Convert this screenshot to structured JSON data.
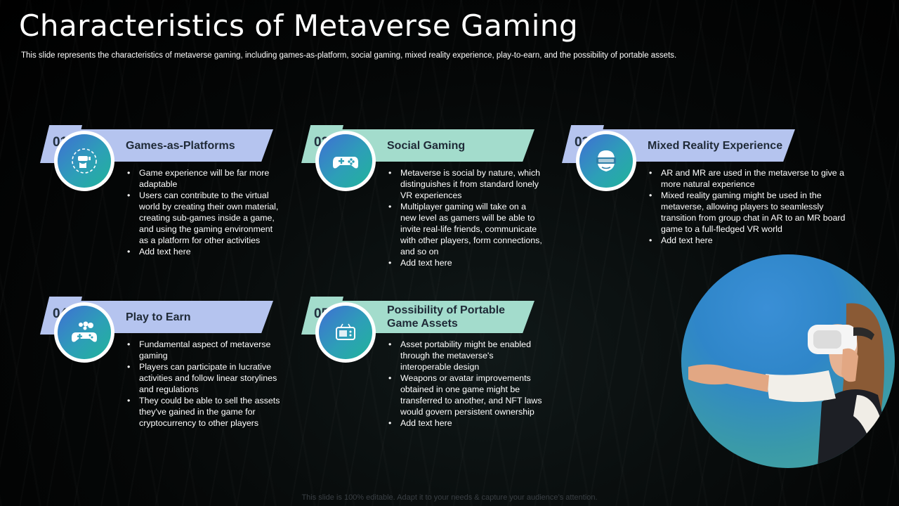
{
  "slide": {
    "title": "Characteristics of Metaverse Gaming",
    "subtitle": "This slide represents the characteristics of metaverse gaming, including games-as-platform, social gaming, mixed reality experience, play-to-earn, and the possibility of portable assets.",
    "footer": "This slide is 100% editable. Adapt it to your needs & capture your audience’s attention."
  },
  "cards": [
    {
      "number": "01",
      "title": "Games-as-Platforms",
      "icon": "vr-headset-person-icon",
      "accent": "#b5c4ef",
      "bullets": [
        "Game experience will be far more adaptable",
        "Users can contribute to the virtual world by creating their own material, creating sub-games inside a game, and using the gaming environment  as a platform for other activities",
        "Add text here"
      ]
    },
    {
      "number": "02",
      "title": "Social Gaming",
      "icon": "gamepad-icon",
      "accent": "#a3dccc",
      "bullets": [
        "Metaverse  is social by nature, which distinguishes it from standard lonely VR experiences",
        "Multiplayer gaming will take on a new level as gamers will be able to invite real-life friends, communicate with other players, form connections, and so on",
        "Add text here"
      ]
    },
    {
      "number": "03",
      "title": "Mixed Reality Experience",
      "icon": "vr-head-icon",
      "accent": "#b5c4ef",
      "bullets": [
        "AR and MR are used in the metaverse  to give  a more natural experience",
        "Mixed reality gaming might be used in the metaverse,  allowing players to seamlessly transition from group chat in AR to an MR board game to a full-fledged  VR world",
        "Add text here"
      ]
    },
    {
      "number": "04",
      "title": "Play to Earn",
      "icon": "gamepad-coins-icon",
      "accent": "#b5c4ef",
      "bullets": [
        "Fundamental  aspect of metaverse  gaming",
        "Players can participate in lucrative activities and follow linear storylines and regulations",
        "They could be able to sell the assets they've  gained in the game for cryptocurrency to other players"
      ]
    },
    {
      "number": "05",
      "title": "Possibility of Portable Game Assets",
      "icon": "handheld-console-icon",
      "accent": "#a3dccc",
      "bullets": [
        "Asset portability might be enabled through the metaverse's interoperable  design",
        "Weapons or avatar improvements  obtained in one game might be transferred  to another, and NFT laws would govern  persistent ownership",
        "Add text here"
      ]
    }
  ],
  "photo": {
    "subject": "woman-wearing-vr-headset-image"
  }
}
